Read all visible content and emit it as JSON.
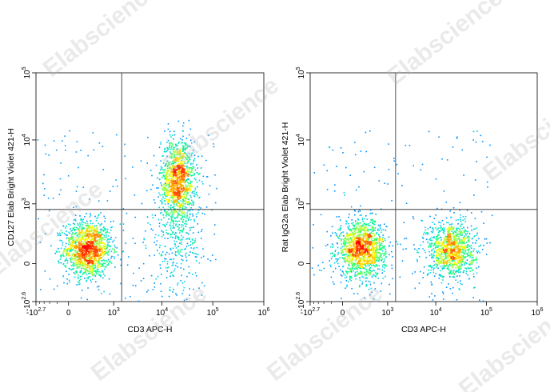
{
  "watermark": "Elabscience",
  "trademark": "®",
  "panels": [
    {
      "ylabel": "CD127 Elab Bright Violet 421-H",
      "xlabel": "CD3 APC-H"
    },
    {
      "ylabel": "Rat IgG2a Elab Bright Violet 421-H",
      "xlabel": "CD3 APC-H"
    }
  ],
  "chart_data": [
    {
      "type": "scatter",
      "subtype": "flow cytometry density plot",
      "xlabel": "CD3 APC-H",
      "ylabel": "CD127 Elab Bright Violet 421-H",
      "x_scale": "biexponential",
      "y_scale": "biexponential",
      "x_ticks": [
        {
          "base": "-10",
          "exp": "2.7",
          "value": -501
        },
        {
          "base": "0",
          "exp": "",
          "value": 0
        },
        {
          "base": "10",
          "exp": "3",
          "value": 1000
        },
        {
          "base": "10",
          "exp": "4",
          "value": 10000
        },
        {
          "base": "10",
          "exp": "5",
          "value": 100000
        },
        {
          "base": "10",
          "exp": "6",
          "value": 1000000
        }
      ],
      "y_ticks": [
        {
          "base": "-10",
          "exp": "2.6",
          "value": -398
        },
        {
          "base": "0",
          "exp": "",
          "value": 0
        },
        {
          "base": "10",
          "exp": "3",
          "value": 1000
        },
        {
          "base": "10",
          "exp": "4",
          "value": 10000
        },
        {
          "base": "10",
          "exp": "5",
          "value": 100000
        }
      ],
      "gate_x": 1500,
      "gate_y": 800,
      "populations": [
        {
          "x_center": 200,
          "y_center": 100,
          "density": "high",
          "shape": "round cluster"
        },
        {
          "x_center": 20000,
          "y_center": 2500,
          "density": "high",
          "shape": "elongated vertical cluster"
        },
        {
          "x_center": 20000,
          "y_center": 200,
          "density": "low",
          "shape": "diffuse spread"
        }
      ],
      "colormap": [
        "#0000ff",
        "#00c8ff",
        "#00ff80",
        "#ffff00",
        "#ff7a00",
        "#ff0000"
      ]
    },
    {
      "type": "scatter",
      "subtype": "flow cytometry density plot",
      "xlabel": "CD3 APC-H",
      "ylabel": "Rat IgG2a Elab Bright Violet 421-H",
      "x_scale": "biexponential",
      "y_scale": "biexponential",
      "x_ticks": [
        {
          "base": "-10",
          "exp": "2.7",
          "value": -501
        },
        {
          "base": "0",
          "exp": "",
          "value": 0
        },
        {
          "base": "10",
          "exp": "3",
          "value": 1000
        },
        {
          "base": "10",
          "exp": "4",
          "value": 10000
        },
        {
          "base": "10",
          "exp": "5",
          "value": 100000
        },
        {
          "base": "10",
          "exp": "6",
          "value": 1000000
        }
      ],
      "y_ticks": [
        {
          "base": "-10",
          "exp": "2.6",
          "value": -398
        },
        {
          "base": "0",
          "exp": "",
          "value": 0
        },
        {
          "base": "10",
          "exp": "3",
          "value": 1000
        },
        {
          "base": "10",
          "exp": "4",
          "value": 10000
        },
        {
          "base": "10",
          "exp": "5",
          "value": 100000
        }
      ],
      "gate_x": 1500,
      "gate_y": 800,
      "populations": [
        {
          "x_center": 200,
          "y_center": 100,
          "density": "high",
          "shape": "round cluster"
        },
        {
          "x_center": 20000,
          "y_center": 100,
          "density": "medium",
          "shape": "round cluster"
        }
      ],
      "colormap": [
        "#0000ff",
        "#00c8ff",
        "#00ff80",
        "#ffff00",
        "#ff7a00",
        "#ff0000"
      ]
    }
  ]
}
